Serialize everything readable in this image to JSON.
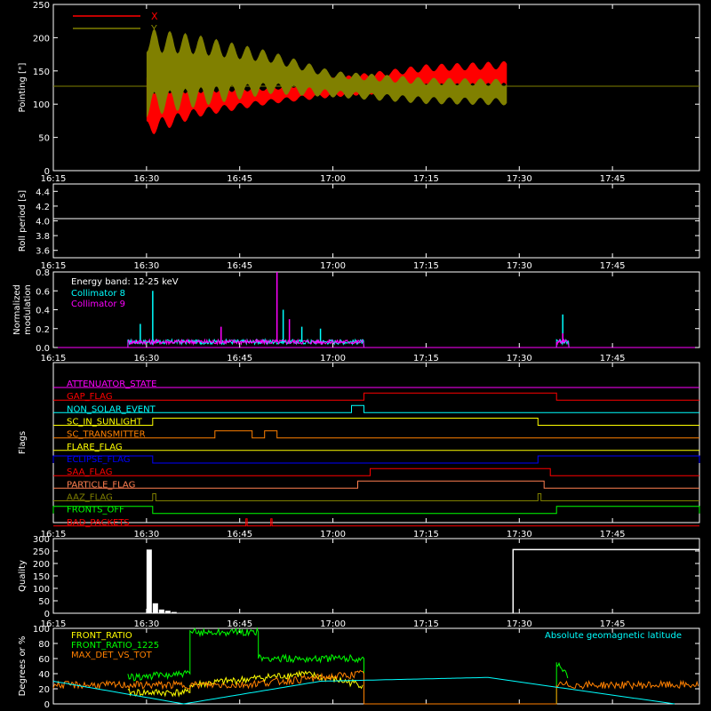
{
  "chart_data": [
    {
      "type": "area",
      "ylabel": "Pointing [\"]",
      "ylim": [
        0,
        250
      ],
      "yticks": [
        0,
        50,
        100,
        150,
        200,
        250
      ],
      "xticks": [
        "16:15",
        "16:30",
        "16:45",
        "17:00",
        "17:15",
        "17:30",
        "17:45"
      ],
      "legend": "top-left",
      "reference_line": 127,
      "series": [
        {
          "name": "X",
          "color": "#ff0000",
          "x": [
            "16:30",
            "16:38",
            "16:50",
            "17:00",
            "17:15",
            "17:28"
          ],
          "low": [
            50,
            80,
            100,
            110,
            120,
            120
          ],
          "high": [
            140,
            130,
            128,
            140,
            160,
            165
          ]
        },
        {
          "name": "Y",
          "color": "#808000",
          "x": [
            "16:30",
            "16:38",
            "16:50",
            "17:00",
            "17:15",
            "17:28"
          ],
          "low": [
            80,
            95,
            115,
            110,
            100,
            98
          ],
          "high": [
            215,
            205,
            180,
            150,
            140,
            138
          ]
        }
      ]
    },
    {
      "type": "line",
      "ylabel": "Roll period [s]",
      "ylim": [
        3.5,
        4.5
      ],
      "yticks": [
        "3.6",
        "3.8",
        "4.0",
        "4.2",
        "4.4"
      ],
      "xticks": [
        "16:15",
        "16:30",
        "16:45",
        "17:00",
        "17:15",
        "17:30",
        "17:45"
      ],
      "series": [
        {
          "color": "#ffffff",
          "x": [
            "16:15",
            "17:59"
          ],
          "values": [
            4.03,
            4.03
          ]
        }
      ]
    },
    {
      "type": "line",
      "ylabel": [
        "Normalized",
        "modulation"
      ],
      "ylim": [
        0,
        0.8
      ],
      "yticks": [
        "0.0",
        "0.2",
        "0.4",
        "0.6",
        "0.8"
      ],
      "xticks": [
        "16:15",
        "16:30",
        "16:45",
        "17:00",
        "17:15",
        "17:30",
        "17:45"
      ],
      "legend_title": "Energy band: 12-25 keV",
      "series": [
        {
          "name": "Collimator 8",
          "color": "#00ffff",
          "segments": [
            [
              "16:27",
              "17:05"
            ],
            [
              "17:36",
              "17:38"
            ]
          ],
          "base": 0.06,
          "spikes": [
            [
              "16:31",
              0.6
            ],
            [
              "16:29",
              0.25
            ],
            [
              "16:52",
              0.4
            ],
            [
              "16:55",
              0.22
            ],
            [
              "16:58",
              0.2
            ],
            [
              "17:37",
              0.35
            ]
          ]
        },
        {
          "name": "Collimator 9",
          "color": "#ff00ff",
          "segments": [
            [
              "16:27",
              "17:05"
            ],
            [
              "17:36",
              "17:38"
            ]
          ],
          "base": 0.06,
          "spikes": [
            [
              "16:51",
              0.8
            ],
            [
              "16:53",
              0.3
            ],
            [
              "16:42",
              0.22
            ],
            [
              "17:37",
              0.15
            ]
          ]
        }
      ]
    },
    {
      "type": "table",
      "ylabel": "Flags",
      "xticks": [
        "16:15",
        "16:30",
        "16:45",
        "17:00",
        "17:15",
        "17:30",
        "17:45"
      ],
      "rows": [
        {
          "name": "ATTENUATOR_STATE",
          "color": "#ff00ff",
          "on": []
        },
        {
          "name": "GAP_FLAG",
          "color": "#ff0000",
          "on": [
            [
              "17:05",
              "17:36"
            ]
          ]
        },
        {
          "name": "NON_SOLAR_EVENT",
          "color": "#00ffff",
          "on": [
            [
              "17:03",
              "17:05"
            ]
          ]
        },
        {
          "name": "SC_IN_SUNLIGHT",
          "color": "#ffff00",
          "on": [
            [
              "16:31",
              "17:33"
            ]
          ]
        },
        {
          "name": "SC_TRANSMITTER",
          "color": "#ff8000",
          "on": [
            [
              "16:41",
              "16:47"
            ],
            [
              "16:49",
              "16:51"
            ]
          ]
        },
        {
          "name": "FLARE_FLAG",
          "color": "#ffff00",
          "on": []
        },
        {
          "name": "ECLIPSE_FLAG",
          "color": "#0000ff",
          "on": [
            [
              "16:15",
              "16:31"
            ],
            [
              "17:33",
              "17:59"
            ]
          ]
        },
        {
          "name": "SAA_FLAG",
          "color": "#ff0000",
          "on": [
            [
              "17:06",
              "17:35"
            ]
          ]
        },
        {
          "name": "PARTICLE_FLAG",
          "color": "#ff7f50",
          "on": [
            [
              "17:04",
              "17:34"
            ]
          ]
        },
        {
          "name": "AAZ_FLAG",
          "color": "#808000",
          "on": [
            [
              "16:31",
              "16:31.5"
            ],
            [
              "17:33",
              "17:33.5"
            ]
          ]
        },
        {
          "name": "FRONTS_OFF",
          "color": "#00ff00",
          "on": [
            [
              "16:15",
              "16:31"
            ],
            [
              "17:36",
              "17:59"
            ]
          ]
        },
        {
          "name": "BAD_PACKETS",
          "color": "#ff0000",
          "on": [
            [
              "16:46",
              "16:46.2"
            ],
            [
              "16:50",
              "16:50.2"
            ]
          ]
        }
      ]
    },
    {
      "type": "bar",
      "ylabel": "Quality",
      "ylim": [
        0,
        300
      ],
      "yticks": [
        "0",
        "50",
        "100",
        "150",
        "200",
        "250",
        "300"
      ],
      "xticks": [
        "16:15",
        "16:30",
        "16:45",
        "17:00",
        "17:15",
        "17:30",
        "17:45"
      ],
      "bars": [
        {
          "x0": "16:30",
          "x1": "16:31",
          "value": 256
        },
        {
          "x0": "16:31",
          "x1": "16:32",
          "value": 40
        },
        {
          "x0": "16:32",
          "x1": "16:33",
          "value": 15
        },
        {
          "x0": "16:33",
          "x1": "16:34",
          "value": 10
        },
        {
          "x0": "16:34",
          "x1": "16:35",
          "value": 5
        }
      ],
      "step_line": {
        "from": "17:29",
        "value": 256
      }
    },
    {
      "type": "line",
      "ylabel": "Degrees or %",
      "ylim": [
        0,
        100
      ],
      "yticks": [
        "0",
        "20",
        "40",
        "60",
        "80",
        "100"
      ],
      "xticks": [],
      "annotation": "Absolute geomagnetic latitude",
      "series": [
        {
          "name": "FRONT_RATIO",
          "color": "#ffff00",
          "x": [
            "16:27",
            "16:37",
            "16:37",
            "16:55",
            "17:05"
          ],
          "values": [
            15,
            15,
            25,
            40,
            25
          ]
        },
        {
          "name": "FRONT_RATIO_1225",
          "color": "#00ff00",
          "x": [
            "16:27",
            "16:37",
            "16:37",
            "16:48",
            "16:48",
            "17:05",
            "17:05",
            "17:36",
            "17:36",
            "17:38"
          ],
          "values": [
            35,
            40,
            95,
            95,
            60,
            60,
            0,
            0,
            55,
            35
          ]
        },
        {
          "name": "MAX_DET_VS_TOT",
          "color": "#ff8000",
          "x": [
            "16:15",
            "16:30",
            "16:45",
            "17:05",
            "17:05",
            "17:36",
            "17:36",
            "17:59"
          ],
          "values": [
            25,
            25,
            25,
            40,
            0,
            0,
            25,
            25
          ]
        },
        {
          "name": "Absolute geomagnetic latitude",
          "color": "#00ffff",
          "x": [
            "16:15",
            "16:36",
            "16:58",
            "17:25",
            "17:55"
          ],
          "values": [
            30,
            0,
            30,
            35,
            0
          ]
        }
      ]
    }
  ]
}
